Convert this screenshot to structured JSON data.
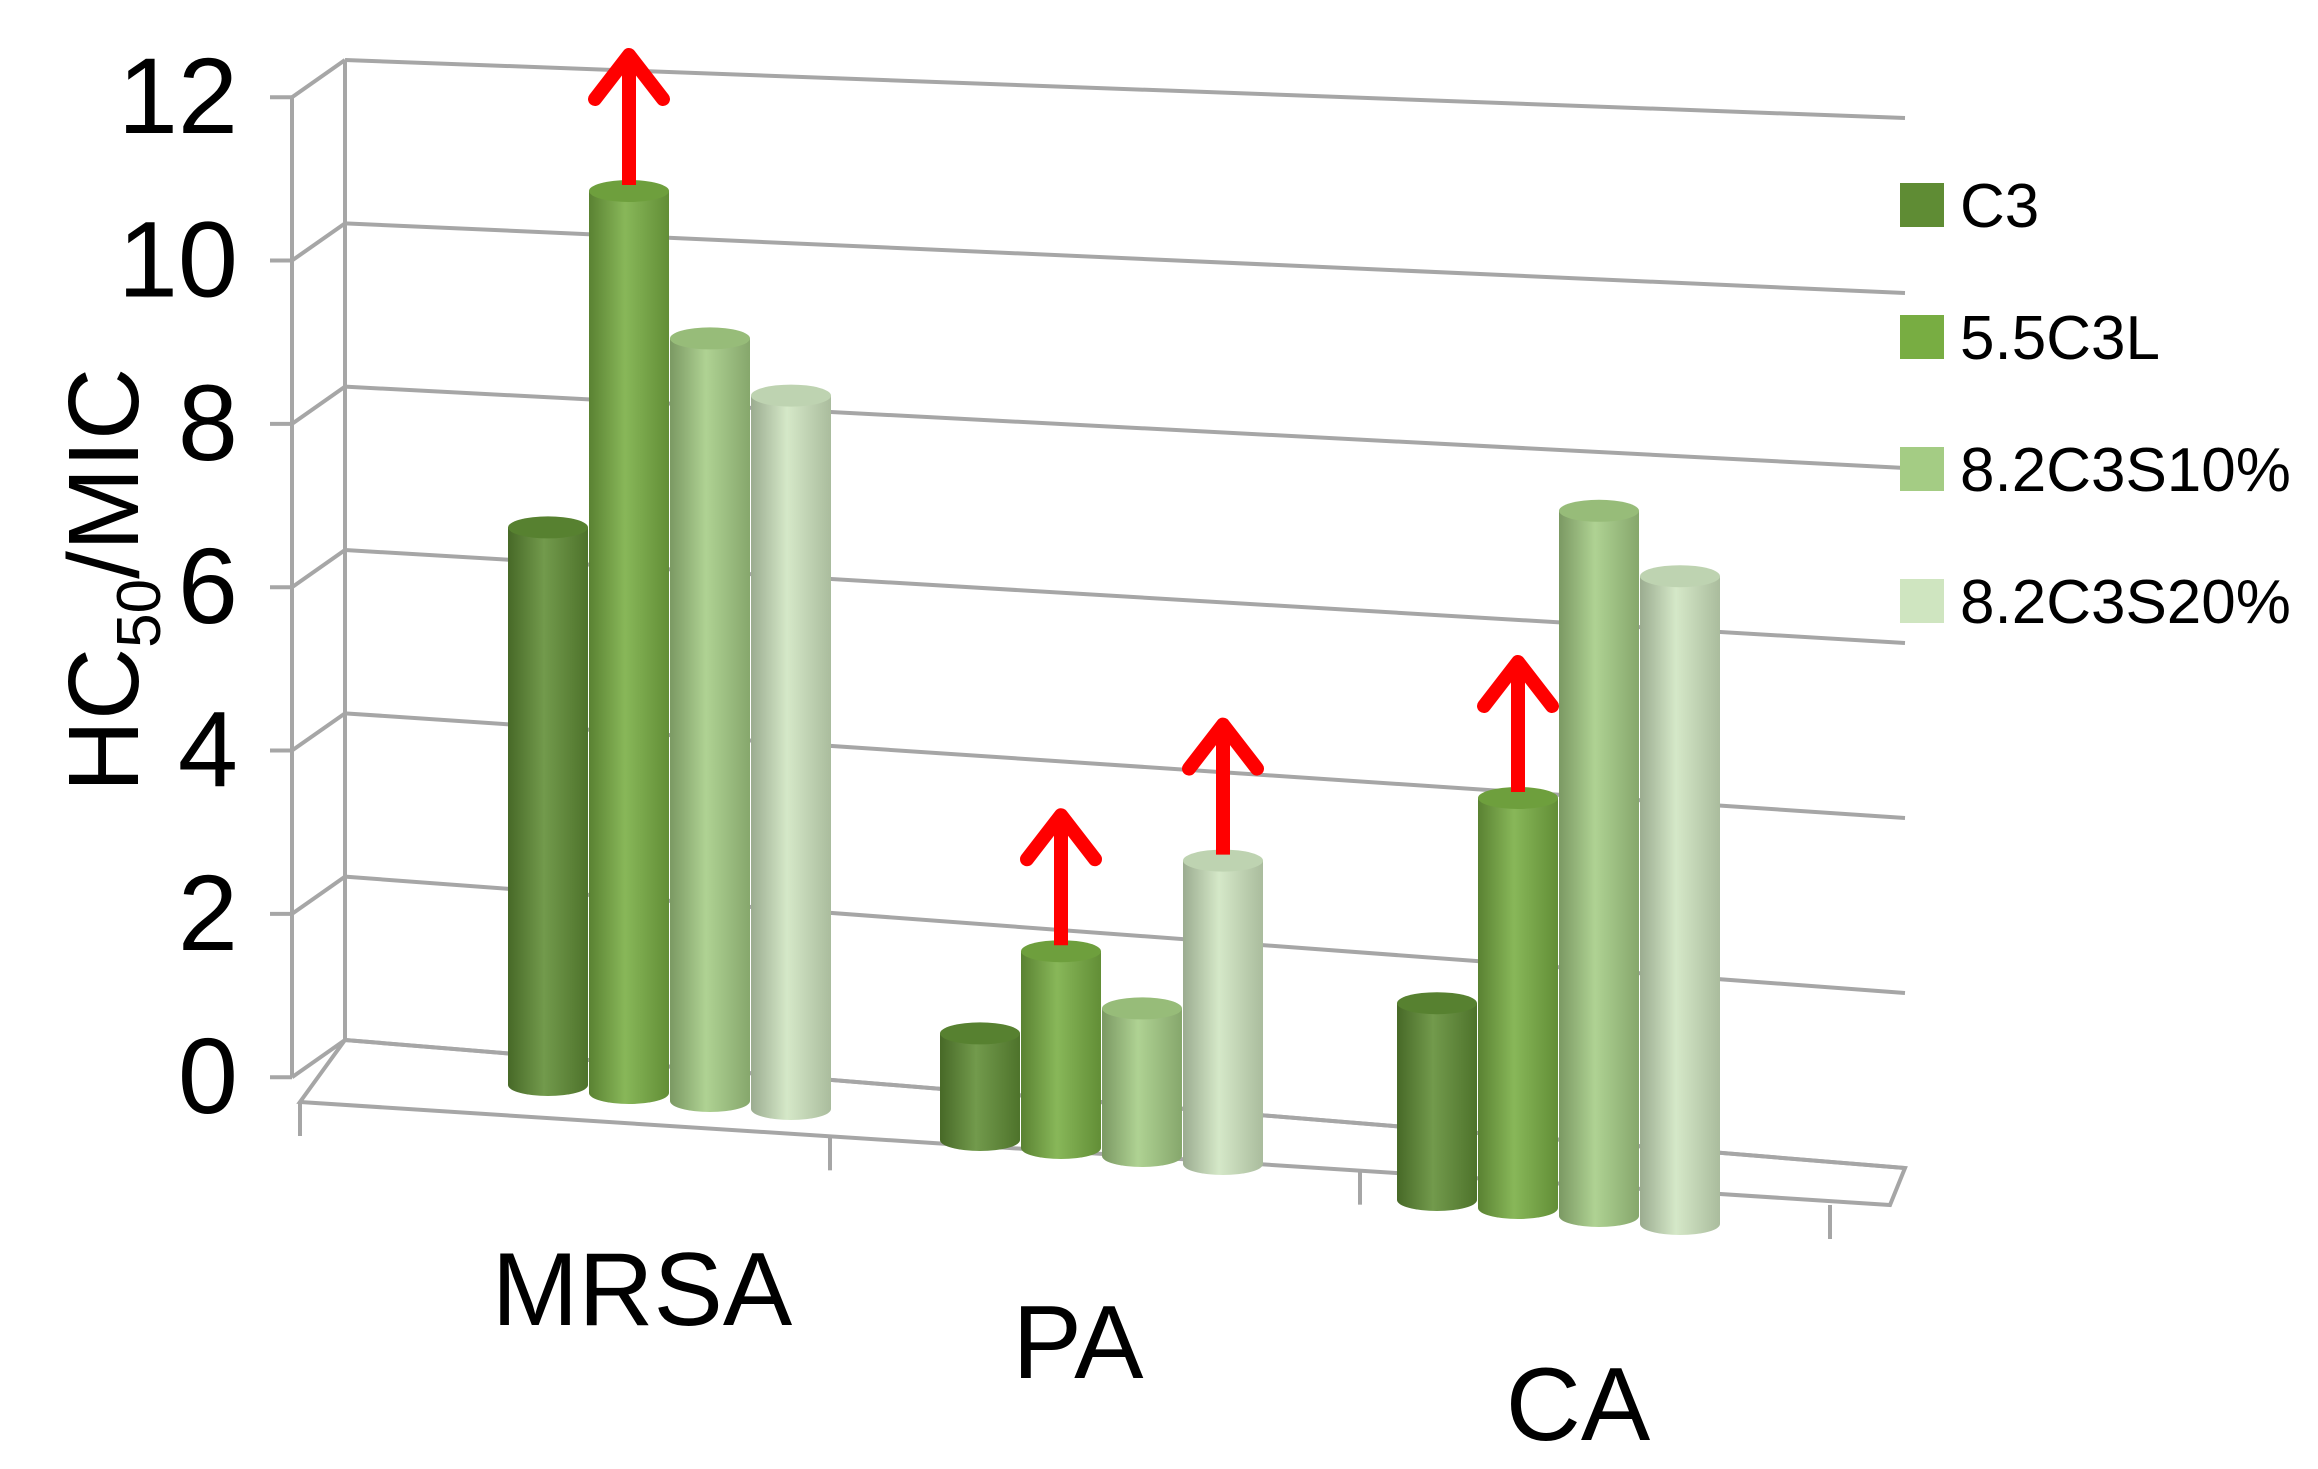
{
  "chart_data": {
    "type": "bar",
    "style": "3d-cylinder",
    "categories": [
      "MRSA",
      "PA",
      "CA"
    ],
    "ylabel_main": "HC",
    "ylabel_sub": "50",
    "ylabel_tail": "/MIC",
    "ylim": [
      0,
      12
    ],
    "yticks": [
      "0",
      "2",
      "4",
      "6",
      "8",
      "10",
      "12"
    ],
    "grid": true,
    "legend_position": "right",
    "series": [
      {
        "name": "C3",
        "values": [
          6.8,
          1.3,
          2.4
        ],
        "color": "#5f8c34"
      },
      {
        "name": "5.5C3L",
        "values": [
          11.0,
          2.4,
          5.0
        ],
        "color": "#78ad42"
      },
      {
        "name": "8.2C3S10%",
        "values": [
          9.3,
          1.8,
          8.6
        ],
        "color": "#a4cc84"
      },
      {
        "name": "8.2C3S20%",
        "values": [
          8.7,
          3.7,
          7.9
        ],
        "color": "#cfe5c0"
      }
    ],
    "arrows": [
      {
        "series": 1,
        "category": 0,
        "direction": "up",
        "color": "#ff0000"
      },
      {
        "series": 1,
        "category": 1,
        "direction": "up",
        "color": "#ff0000"
      },
      {
        "series": 3,
        "category": 1,
        "direction": "up",
        "color": "#ff0000"
      },
      {
        "series": 1,
        "category": 2,
        "direction": "up",
        "color": "#ff0000"
      }
    ]
  }
}
